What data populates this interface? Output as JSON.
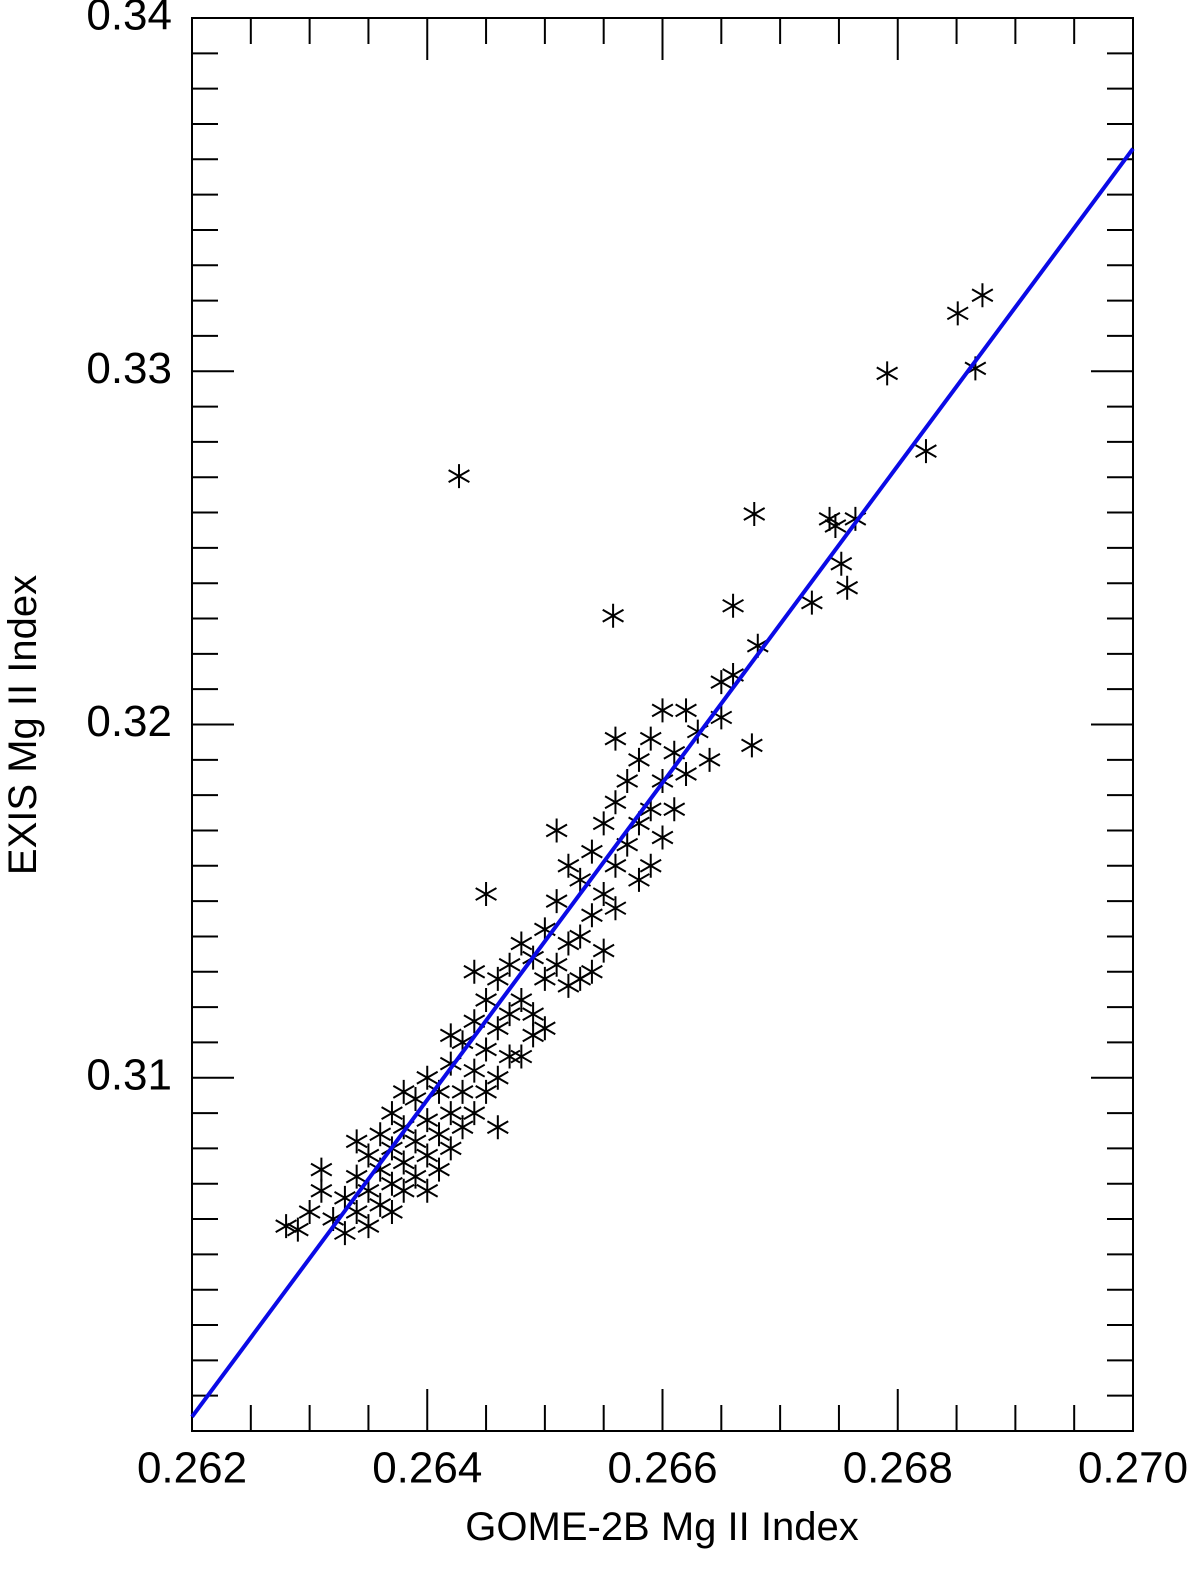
{
  "chart_data": {
    "type": "scatter",
    "xlabel": "GOME-2B Mg II Index",
    "ylabel": "EXIS Mg II Index",
    "color": "#000000",
    "xlim": [
      0.262,
      0.27
    ],
    "ylim": [
      0.3,
      0.34
    ],
    "xticks": [
      0.262,
      0.264,
      0.266,
      0.268,
      {
        "value": 0.27,
        "label": "0.270"
      }
    ],
    "yticks": [
      0.31,
      0.32,
      0.33,
      0.34
    ],
    "xminorticks": [
      0.2625,
      0.263,
      0.2635,
      0.2645,
      0.265,
      0.2655,
      0.2665,
      0.267,
      0.2675,
      0.2685,
      0.269,
      0.2695
    ],
    "yminorticks": [
      0.301,
      0.302,
      0.303,
      0.304,
      0.305,
      0.306,
      0.307,
      0.308,
      0.309,
      0.311,
      0.312,
      0.313,
      0.314,
      0.315,
      0.316,
      0.317,
      0.318,
      0.319,
      0.321,
      0.322,
      0.323,
      0.324,
      0.325,
      0.326,
      0.327,
      0.328,
      0.329,
      0.331,
      0.332,
      0.333,
      0.334,
      0.335,
      0.336,
      0.337,
      0.338,
      0.339
    ],
    "x": [
      0.2629,
      0.263,
      0.2631,
      0.2632,
      0.2633,
      0.2633,
      0.2634,
      0.2634,
      0.2635,
      0.2635,
      0.2635,
      0.2636,
      0.2636,
      0.2636,
      0.2637,
      0.2637,
      0.2637,
      0.2637,
      0.2638,
      0.2638,
      0.2638,
      0.2639,
      0.2639,
      0.2639,
      0.264,
      0.264,
      0.264,
      0.264,
      0.2641,
      0.2641,
      0.2641,
      0.2642,
      0.2642,
      0.2642,
      0.2643,
      0.2643,
      0.2643,
      0.2644,
      0.2644,
      0.2644,
      0.2645,
      0.2645,
      0.2645,
      0.2646,
      0.2646,
      0.2646,
      0.2647,
      0.2647,
      0.2647,
      0.2648,
      0.2648,
      0.2648,
      0.2649,
      0.2649,
      0.265,
      0.265,
      0.265,
      0.2651,
      0.2651,
      0.2652,
      0.2652,
      0.2652,
      0.2653,
      0.2653,
      0.2654,
      0.2654,
      0.2654,
      0.2655,
      0.2655,
      0.2655,
      0.2656,
      0.2656,
      0.2656,
      0.2657,
      0.2657,
      0.2658,
      0.2658,
      0.2658,
      0.2659,
      0.2659,
      0.2659,
      0.266,
      0.266,
      0.266,
      0.2661,
      0.2661,
      0.2662,
      0.2662,
      0.2663,
      0.2664,
      0.2665,
      0.2665,
      0.2666,
      0.2631,
      0.2628,
      0.2634,
      0.2638,
      0.2642,
      0.2646,
      0.2649,
      0.2653,
      0.2656,
      0.2651,
      0.2644,
      0.2645,
      0.26427,
      0.26558,
      0.26678,
      0.2666,
      0.26676,
      0.26681,
      0.26791,
      0.26851,
      0.26872,
      0.26866,
      0.26824,
      0.26742,
      0.26747,
      0.26764,
      0.26752,
      0.26757,
      0.26727
    ],
    "values": [
      0.3057,
      0.3062,
      0.3068,
      0.306,
      0.3066,
      0.3056,
      0.3072,
      0.3062,
      0.3078,
      0.3068,
      0.3058,
      0.3084,
      0.3074,
      0.3064,
      0.309,
      0.308,
      0.307,
      0.3062,
      0.3086,
      0.3076,
      0.3068,
      0.3094,
      0.3082,
      0.3072,
      0.31,
      0.3088,
      0.3078,
      0.3068,
      0.3096,
      0.3084,
      0.3074,
      0.3104,
      0.309,
      0.308,
      0.311,
      0.3096,
      0.3086,
      0.3116,
      0.3102,
      0.309,
      0.3122,
      0.3108,
      0.3096,
      0.3128,
      0.3114,
      0.31,
      0.3132,
      0.3118,
      0.3106,
      0.3138,
      0.3122,
      0.3106,
      0.3134,
      0.3118,
      0.3142,
      0.3128,
      0.3114,
      0.315,
      0.3132,
      0.316,
      0.3138,
      0.3126,
      0.3156,
      0.314,
      0.3164,
      0.3146,
      0.313,
      0.3172,
      0.3152,
      0.3136,
      0.3178,
      0.316,
      0.3148,
      0.3184,
      0.3166,
      0.319,
      0.3172,
      0.3156,
      0.3196,
      0.3176,
      0.316,
      0.3204,
      0.3184,
      0.3168,
      0.3192,
      0.3176,
      0.3204,
      0.3186,
      0.3198,
      0.319,
      0.3212,
      0.3202,
      0.3214,
      0.3074,
      0.3058,
      0.3082,
      0.3096,
      0.3112,
      0.3086,
      0.3112,
      0.3128,
      0.3196,
      0.317,
      0.313,
      0.3152,
      0.32703,
      0.32308,
      0.32596,
      0.32336,
      0.31941,
      0.32223,
      0.32994,
      0.33164,
      0.33215,
      0.33008,
      0.32774,
      0.32582,
      0.32562,
      0.32582,
      0.32455,
      0.32387,
      0.32345
    ],
    "fit": {
      "type": "line",
      "color": "#0a0ae6",
      "x": [
        0.262,
        0.27
      ],
      "values": [
        0.3004,
        0.3363
      ]
    }
  }
}
